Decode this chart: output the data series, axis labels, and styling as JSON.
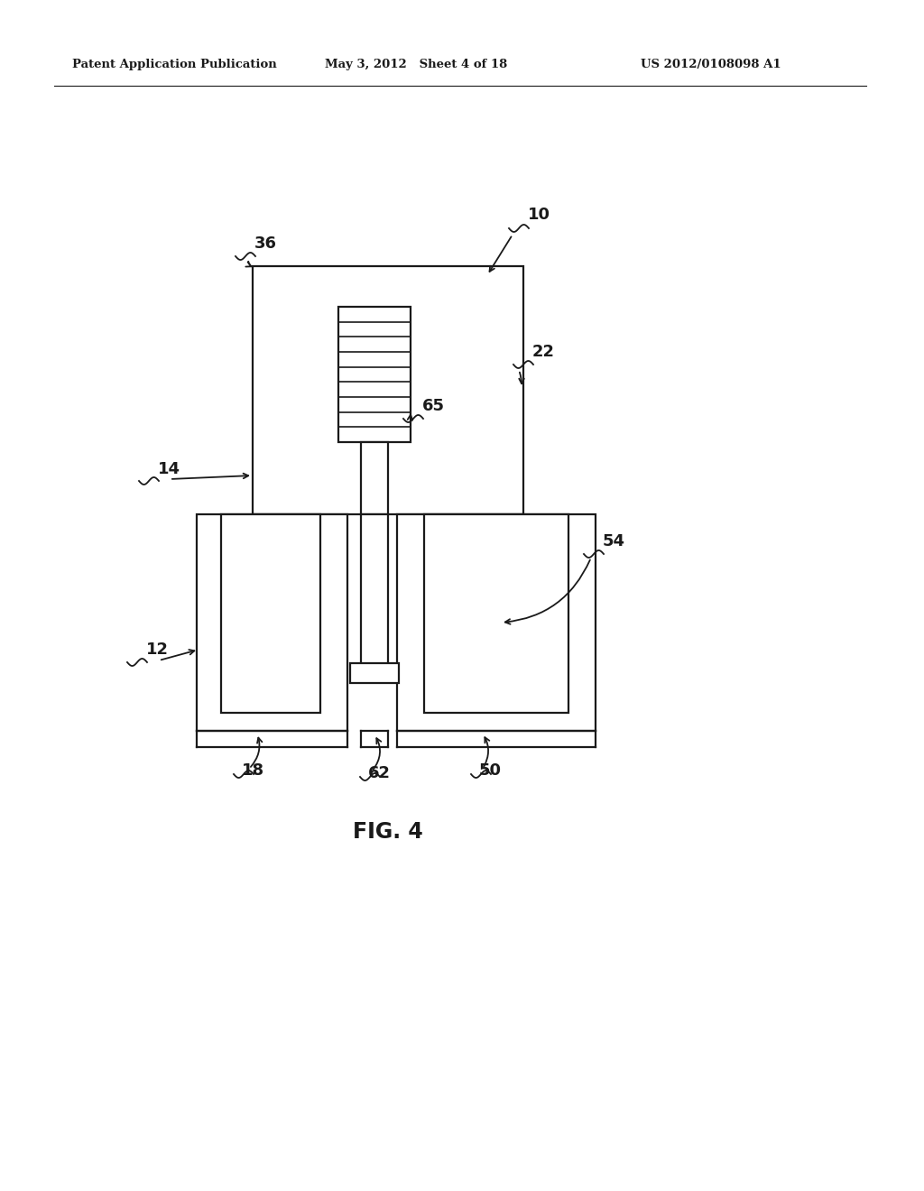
{
  "bg_color": "#ffffff",
  "line_color": "#1a1a1a",
  "header_left": "Patent Application Publication",
  "header_mid": "May 3, 2012   Sheet 4 of 18",
  "header_right": "US 2012/0108098 A1",
  "fig_label": "FIG. 4",
  "lw": 1.6
}
